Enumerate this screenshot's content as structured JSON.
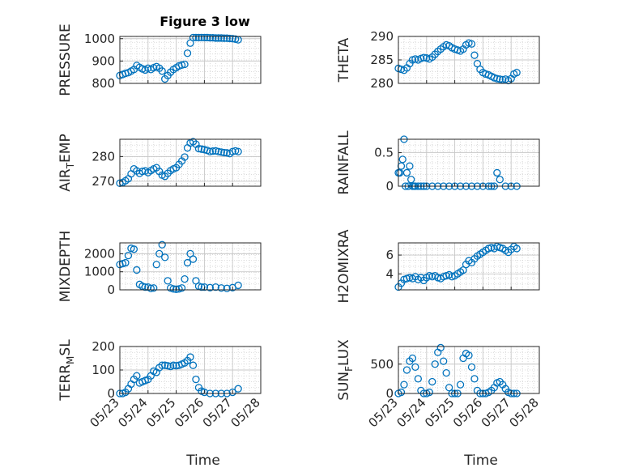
{
  "figure": {
    "title": "Figure 3 low",
    "x_ticks": [
      "05/23",
      "05/24",
      "05/25",
      "05/26",
      "05/27",
      "05/28"
    ],
    "x_label": "Time",
    "colors": {
      "marker": "#0072BD",
      "axis": "#262626",
      "grid": "#d0d0d0"
    }
  },
  "chart_data": [
    {
      "type": "scatter",
      "ylabel": "PRESSURE",
      "xlim": [
        0,
        5
      ],
      "ylim": [
        800,
        1010
      ],
      "yticks": [
        800,
        900,
        1000
      ],
      "x": [
        0.0,
        0.1,
        0.2,
        0.3,
        0.4,
        0.5,
        0.6,
        0.7,
        0.8,
        0.9,
        1.0,
        1.1,
        1.2,
        1.3,
        1.4,
        1.5,
        1.6,
        1.7,
        1.8,
        1.9,
        2.0,
        2.1,
        2.2,
        2.3,
        2.4,
        2.5,
        2.6,
        2.7,
        2.8,
        2.9,
        3.0,
        3.1,
        3.2,
        3.3,
        3.4,
        3.5,
        3.6,
        3.7,
        3.8,
        3.9,
        4.0,
        4.1,
        4.2
      ],
      "y": [
        835,
        840,
        845,
        848,
        855,
        862,
        880,
        872,
        865,
        860,
        868,
        862,
        870,
        875,
        868,
        855,
        820,
        835,
        850,
        862,
        870,
        878,
        882,
        885,
        935,
        980,
        1005,
        1005,
        1005,
        1005,
        1005,
        1005,
        1004,
        1004,
        1003,
        1003,
        1003,
        1002,
        1002,
        1001,
        1000,
        998,
        995
      ]
    },
    {
      "type": "scatter",
      "ylabel": "THETA",
      "xlim": [
        0,
        5
      ],
      "ylim": [
        280,
        290
      ],
      "yticks": [
        280,
        285,
        290
      ],
      "x": [
        0.0,
        0.1,
        0.2,
        0.3,
        0.4,
        0.5,
        0.6,
        0.7,
        0.8,
        0.9,
        1.0,
        1.1,
        1.2,
        1.3,
        1.4,
        1.5,
        1.6,
        1.7,
        1.8,
        1.9,
        2.0,
        2.1,
        2.2,
        2.3,
        2.4,
        2.5,
        2.6,
        2.7,
        2.8,
        2.9,
        3.0,
        3.1,
        3.2,
        3.3,
        3.4,
        3.5,
        3.6,
        3.7,
        3.8,
        3.9,
        4.0,
        4.1,
        4.2
      ],
      "y": [
        283.2,
        283.0,
        282.8,
        283.3,
        284.2,
        285.0,
        285.2,
        285.0,
        285.3,
        285.5,
        285.4,
        285.2,
        285.6,
        286.2,
        286.8,
        287.3,
        287.8,
        288.2,
        288.0,
        287.6,
        287.3,
        287.1,
        286.9,
        287.3,
        288.2,
        288.6,
        288.4,
        286.0,
        284.2,
        283.0,
        282.3,
        282.0,
        281.8,
        281.5,
        281.2,
        281.0,
        280.9,
        280.8,
        280.9,
        280.6,
        281.0,
        282.0,
        282.3
      ]
    },
    {
      "type": "scatter",
      "ylabel": "AIR_TEMP",
      "xlim": [
        0,
        5
      ],
      "ylim": [
        268,
        287
      ],
      "yticks": [
        270,
        280
      ],
      "x": [
        0.0,
        0.1,
        0.2,
        0.3,
        0.4,
        0.5,
        0.6,
        0.7,
        0.8,
        0.9,
        1.0,
        1.1,
        1.2,
        1.3,
        1.4,
        1.5,
        1.6,
        1.7,
        1.8,
        1.9,
        2.0,
        2.1,
        2.2,
        2.3,
        2.4,
        2.5,
        2.6,
        2.7,
        2.8,
        2.9,
        3.0,
        3.1,
        3.2,
        3.3,
        3.4,
        3.5,
        3.6,
        3.7,
        3.8,
        3.9,
        4.0,
        4.1,
        4.2
      ],
      "y": [
        269.2,
        269.5,
        270.2,
        271.0,
        273.0,
        275.0,
        274.2,
        273.2,
        274.0,
        274.2,
        273.5,
        274.3,
        275.0,
        275.5,
        274.0,
        272.5,
        272.0,
        273.2,
        274.3,
        275.0,
        275.5,
        276.8,
        278.2,
        279.8,
        283.5,
        285.5,
        286.0,
        285.0,
        283.2,
        283.0,
        282.8,
        282.5,
        282.0,
        282.2,
        282.3,
        282.0,
        281.8,
        281.6,
        281.5,
        281.2,
        282.0,
        282.3,
        282.0
      ]
    },
    {
      "type": "scatter",
      "ylabel": "RAINFALL",
      "xlim": [
        0,
        5
      ],
      "ylim": [
        0,
        0.7
      ],
      "yticks": [
        0,
        0.5
      ],
      "x": [
        0.0,
        0.05,
        0.1,
        0.15,
        0.2,
        0.25,
        0.3,
        0.35,
        0.4,
        0.45,
        0.5,
        0.55,
        0.6,
        0.7,
        0.8,
        0.9,
        1.0,
        1.2,
        1.4,
        1.6,
        1.8,
        2.0,
        2.2,
        2.4,
        2.6,
        2.8,
        3.0,
        3.2,
        3.3,
        3.4,
        3.5,
        3.6,
        3.8,
        4.0,
        4.2
      ],
      "y": [
        0.2,
        0.2,
        0.3,
        0.4,
        0.7,
        0.0,
        0.2,
        0.0,
        0.3,
        0.1,
        0.0,
        0.0,
        0.0,
        0.0,
        0.0,
        0.0,
        0.0,
        0.0,
        0.0,
        0.0,
        0.0,
        0.0,
        0.0,
        0.0,
        0.0,
        0.0,
        0.0,
        0.0,
        0.0,
        0.0,
        0.2,
        0.1,
        0.0,
        0.0,
        0.0
      ]
    },
    {
      "type": "scatter",
      "ylabel": "MIXDEPTH",
      "xlim": [
        0,
        5
      ],
      "ylim": [
        0,
        2600
      ],
      "yticks": [
        0,
        1000,
        2000
      ],
      "x": [
        0.0,
        0.1,
        0.2,
        0.3,
        0.4,
        0.5,
        0.6,
        0.7,
        0.8,
        0.9,
        1.0,
        1.1,
        1.2,
        1.3,
        1.4,
        1.5,
        1.6,
        1.7,
        1.8,
        1.9,
        2.0,
        2.1,
        2.2,
        2.3,
        2.4,
        2.5,
        2.6,
        2.7,
        2.8,
        2.9,
        3.0,
        3.2,
        3.4,
        3.6,
        3.8,
        4.0,
        4.2
      ],
      "y": [
        1400,
        1450,
        1500,
        1900,
        2300,
        2250,
        1100,
        300,
        200,
        150,
        150,
        80,
        100,
        1400,
        2000,
        2500,
        1800,
        500,
        100,
        50,
        30,
        50,
        100,
        600,
        1500,
        2000,
        1700,
        500,
        200,
        150,
        150,
        120,
        150,
        100,
        80,
        120,
        250
      ]
    },
    {
      "type": "scatter",
      "ylabel": "H2OMIXRA",
      "xlim": [
        0,
        5
      ],
      "ylim": [
        2.3,
        7.3
      ],
      "yticks": [
        4,
        6
      ],
      "x": [
        0.0,
        0.1,
        0.2,
        0.3,
        0.4,
        0.5,
        0.6,
        0.7,
        0.8,
        0.9,
        1.0,
        1.1,
        1.2,
        1.3,
        1.4,
        1.5,
        1.6,
        1.7,
        1.8,
        1.9,
        2.0,
        2.1,
        2.2,
        2.3,
        2.4,
        2.5,
        2.6,
        2.7,
        2.8,
        2.9,
        3.0,
        3.1,
        3.2,
        3.3,
        3.4,
        3.5,
        3.6,
        3.7,
        3.8,
        3.9,
        4.0,
        4.1,
        4.2
      ],
      "y": [
        2.6,
        3.0,
        3.4,
        3.5,
        3.6,
        3.5,
        3.7,
        3.4,
        3.6,
        3.3,
        3.6,
        3.8,
        3.7,
        3.8,
        3.6,
        3.5,
        3.7,
        3.8,
        3.9,
        3.7,
        3.8,
        4.0,
        4.2,
        4.4,
        5.0,
        5.4,
        5.2,
        5.6,
        5.9,
        6.1,
        6.3,
        6.5,
        6.7,
        6.8,
        6.7,
        6.9,
        6.8,
        6.7,
        6.5,
        6.3,
        6.6,
        6.9,
        6.7
      ]
    },
    {
      "type": "scatter",
      "ylabel": "TERR_MSL",
      "xlim": [
        0,
        5
      ],
      "ylim": [
        0,
        200
      ],
      "yticks": [
        0,
        100,
        200
      ],
      "x": [
        0.0,
        0.1,
        0.2,
        0.3,
        0.4,
        0.5,
        0.6,
        0.7,
        0.8,
        0.9,
        1.0,
        1.1,
        1.2,
        1.3,
        1.4,
        1.5,
        1.6,
        1.7,
        1.8,
        1.9,
        2.0,
        2.1,
        2.2,
        2.3,
        2.4,
        2.5,
        2.6,
        2.7,
        2.8,
        2.9,
        3.0,
        3.2,
        3.4,
        3.6,
        3.8,
        4.0,
        4.2
      ],
      "y": [
        0,
        0,
        5,
        20,
        40,
        60,
        75,
        45,
        50,
        55,
        60,
        75,
        95,
        90,
        110,
        120,
        120,
        118,
        115,
        120,
        118,
        120,
        125,
        130,
        140,
        155,
        120,
        60,
        25,
        10,
        5,
        0,
        0,
        0,
        0,
        5,
        20
      ]
    },
    {
      "type": "scatter",
      "ylabel": "SUN_FLUX",
      "xlim": [
        0,
        5
      ],
      "ylim": [
        0,
        800
      ],
      "yticks": [
        0,
        500
      ],
      "x": [
        0.0,
        0.1,
        0.2,
        0.3,
        0.4,
        0.5,
        0.6,
        0.7,
        0.8,
        0.9,
        1.0,
        1.1,
        1.2,
        1.3,
        1.4,
        1.5,
        1.6,
        1.7,
        1.8,
        1.9,
        2.0,
        2.1,
        2.2,
        2.3,
        2.4,
        2.5,
        2.6,
        2.7,
        2.8,
        2.9,
        3.0,
        3.1,
        3.2,
        3.3,
        3.4,
        3.5,
        3.6,
        3.7,
        3.8,
        3.9,
        4.0,
        4.1,
        4.2
      ],
      "y": [
        0,
        20,
        150,
        400,
        550,
        600,
        450,
        250,
        50,
        0,
        0,
        20,
        200,
        500,
        700,
        780,
        550,
        350,
        100,
        0,
        0,
        0,
        150,
        600,
        680,
        650,
        450,
        250,
        50,
        0,
        0,
        0,
        20,
        50,
        100,
        180,
        200,
        150,
        80,
        20,
        0,
        0,
        0
      ]
    }
  ]
}
